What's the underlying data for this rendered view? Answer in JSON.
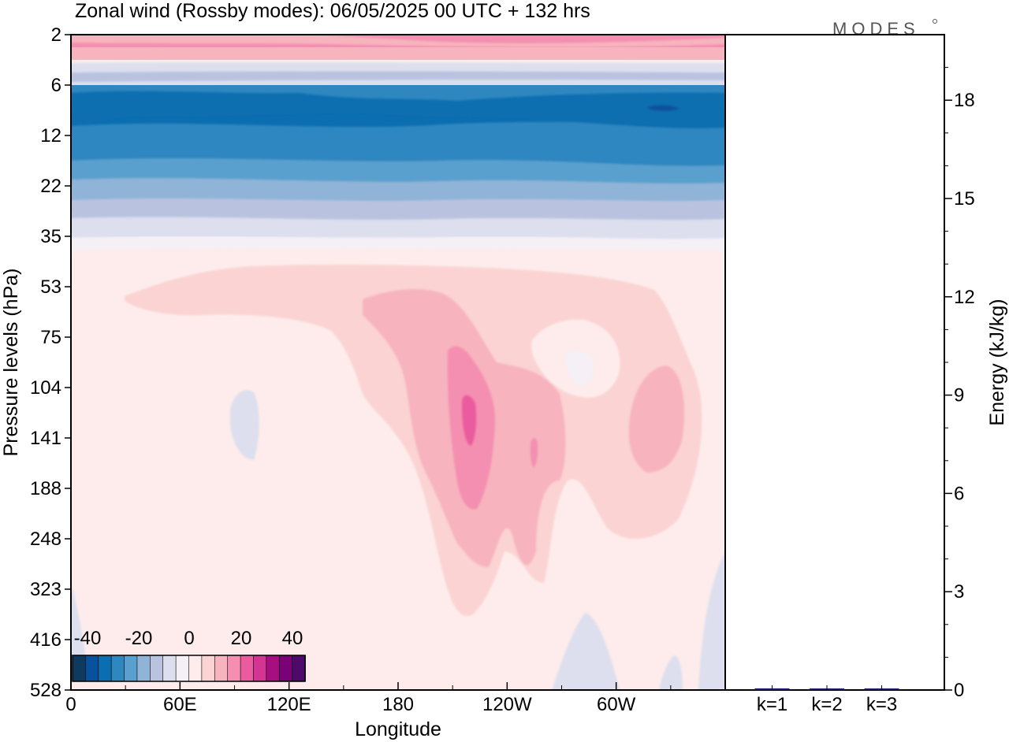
{
  "header": {
    "title": "Zonal wind (Rossby modes):  06/05/2025  00 UTC  + 132 hrs",
    "logo": "MODES"
  },
  "chart_data": [
    {
      "type": "heatmap",
      "title": "Zonal wind (Rossby modes):  06/05/2025  00 UTC  + 132 hrs",
      "xlabel": "Longitude",
      "ylabel": "Pressure levels (hPa)",
      "x_ticks": [
        "0",
        "60E",
        "120E",
        "180",
        "120W",
        "60W"
      ],
      "x_tick_degrees": [
        0,
        60,
        120,
        180,
        240,
        300
      ],
      "xlim": [
        0,
        360
      ],
      "y_ticks": [
        "2",
        "6",
        "12",
        "22",
        "35",
        "53",
        "75",
        "104",
        "141",
        "188",
        "248",
        "323",
        "416",
        "528"
      ],
      "y_scale": "pressure levels (unevenly spaced)",
      "legend": {
        "position": "bottom-left",
        "labels": [
          "-40",
          "-20",
          "0",
          "20",
          "40"
        ],
        "colors": [
          "#0d3a5e",
          "#08519c",
          "#0b6eb0",
          "#2f87c0",
          "#5aa0ce",
          "#8fb4d8",
          "#b9c3df",
          "#dddfee",
          "#f4f0f6",
          "#fdeceb",
          "#fbd3d3",
          "#f7b4be",
          "#f48fb1",
          "#ea5c9f",
          "#d33592",
          "#a50f7f",
          "#7a0177",
          "#4d0a6b"
        ]
      },
      "bands": [
        {
          "level": "2",
          "value": 18
        },
        {
          "level": "3",
          "value": 12
        },
        {
          "level": "4",
          "value": 4
        },
        {
          "level": "5",
          "value": -6
        },
        {
          "level": "6",
          "value": -26
        },
        {
          "level": "9",
          "value": -34
        },
        {
          "level": "12",
          "value": -30
        },
        {
          "level": "16",
          "value": -26
        },
        {
          "level": "22",
          "value": -18
        },
        {
          "level": "28",
          "value": -10
        },
        {
          "level": "35",
          "value": -4
        },
        {
          "level": "53",
          "value": 3
        },
        {
          "level": "104",
          "value": 1
        },
        {
          "level": "528",
          "value": 0
        }
      ]
    },
    {
      "type": "bar",
      "categories": [
        "k=1",
        "k=2",
        "k=3"
      ],
      "values": [
        0.05,
        0.02,
        0.01
      ],
      "ylabel": "Energy (kJ/kg)",
      "y_ticks": [
        "0",
        "3",
        "6",
        "9",
        "12",
        "15",
        "18"
      ],
      "ylim": [
        0,
        20
      ],
      "bar_color": "#1a1a6e"
    }
  ]
}
